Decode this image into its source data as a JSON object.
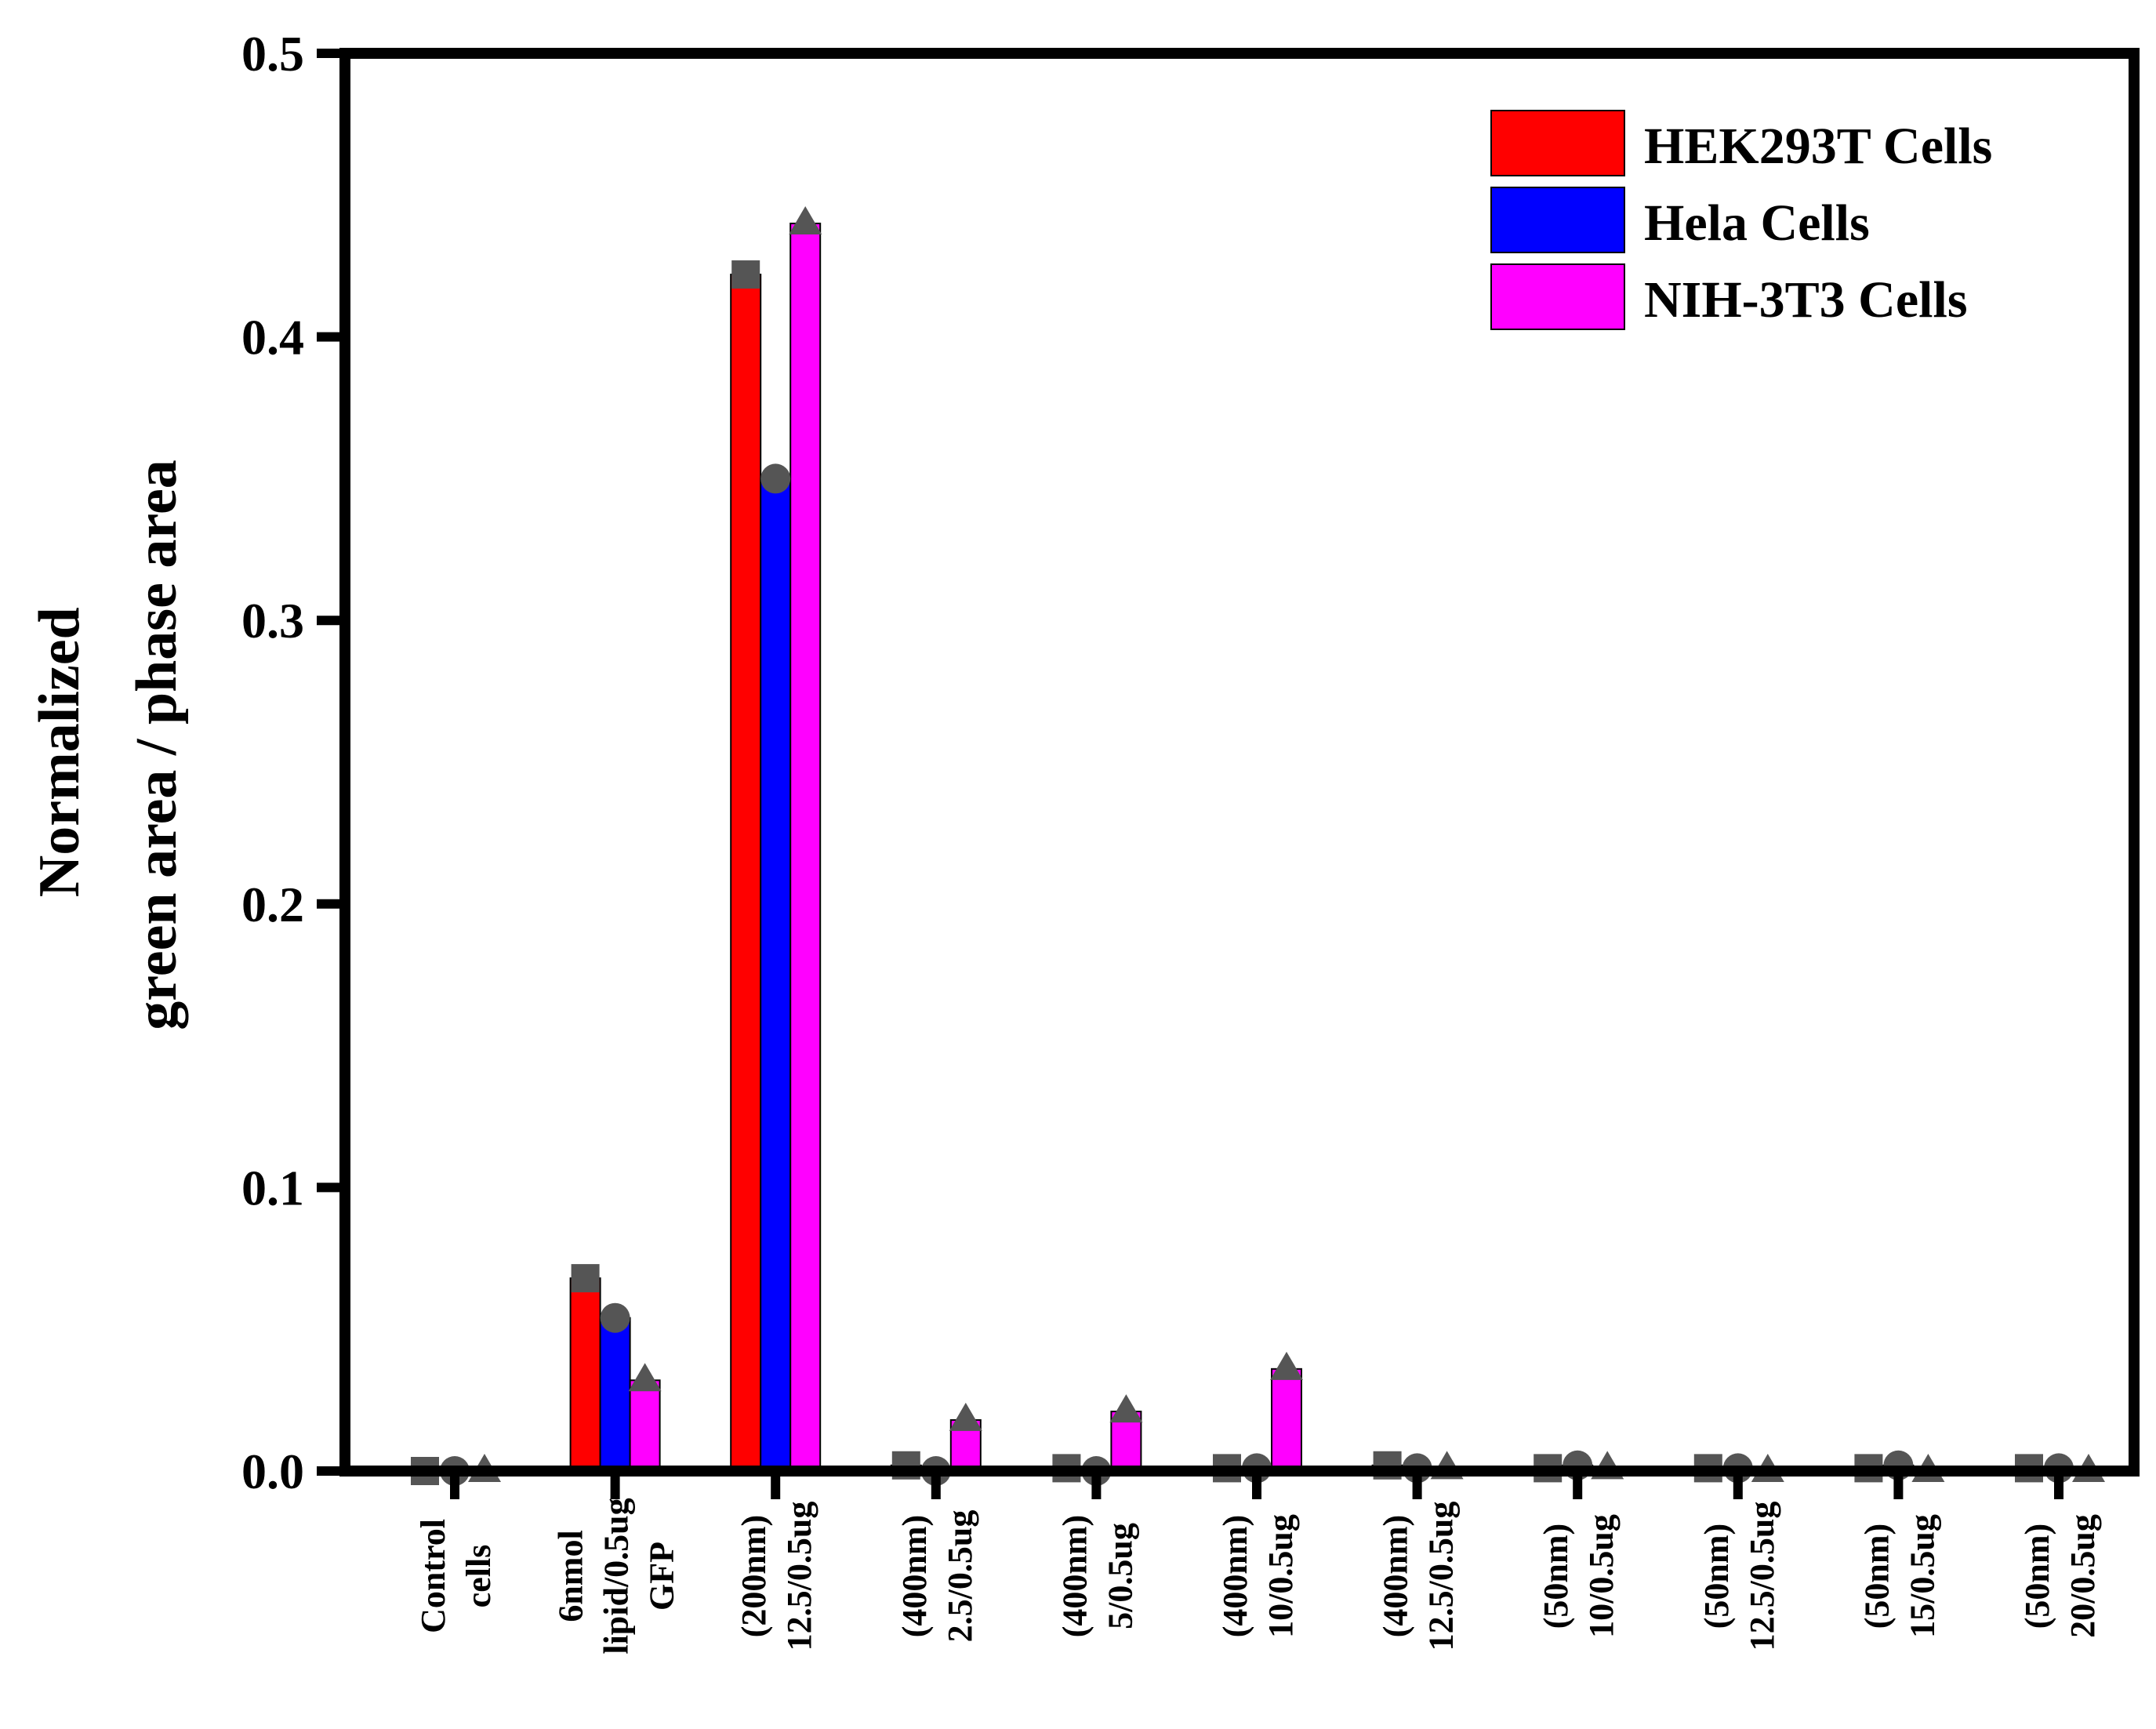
{
  "chart_data": {
    "type": "bar",
    "title": "",
    "xlabel": "",
    "ylabel": [
      "Normalized",
      "green area / phase area"
    ],
    "ylim": [
      0,
      0.5
    ],
    "yticks": [
      "0.0",
      "0.1",
      "0.2",
      "0.3",
      "0.4",
      "0.5"
    ],
    "grid": false,
    "legend_position": "top-right",
    "categories": [
      [
        "Control",
        "cells"
      ],
      [
        "6nmol",
        "lipid/0.5ug",
        "GFP"
      ],
      [
        "(200nm)",
        "12.5/0.5ug"
      ],
      [
        "(400nm)",
        "2.5/0.5ug"
      ],
      [
        "(400nm)",
        "5/0.5ug"
      ],
      [
        "(400nm)",
        "10/0.5ug"
      ],
      [
        "(400nm)",
        "12.5/0.5ug"
      ],
      [
        "(50nm)",
        "10/0.5ug"
      ],
      [
        "(50nm)",
        "12.5/0.5ug"
      ],
      [
        "(50nm)",
        "15/0.5ug"
      ],
      [
        "(50nm)",
        "20/0.5ug"
      ]
    ],
    "series": [
      {
        "name": "HEK293T Cells",
        "color": "#ff0000",
        "marker": "square",
        "values": [
          0.0,
          0.068,
          0.422,
          0.002,
          0.001,
          0.001,
          0.002,
          0.001,
          0.001,
          0.001,
          0.001
        ]
      },
      {
        "name": "Hela Cells",
        "color": "#0000ff",
        "marker": "circle",
        "values": [
          0.0,
          0.054,
          0.35,
          0.0,
          0.0,
          0.001,
          0.001,
          0.002,
          0.001,
          0.002,
          0.001
        ]
      },
      {
        "name": "NIH-3T3 Cells",
        "color": "#ff00ff",
        "marker": "triangle",
        "values": [
          0.0,
          0.032,
          0.44,
          0.018,
          0.021,
          0.036,
          0.001,
          0.001,
          0.0,
          0.0,
          0.0
        ]
      }
    ],
    "marker_color": "#555555"
  }
}
